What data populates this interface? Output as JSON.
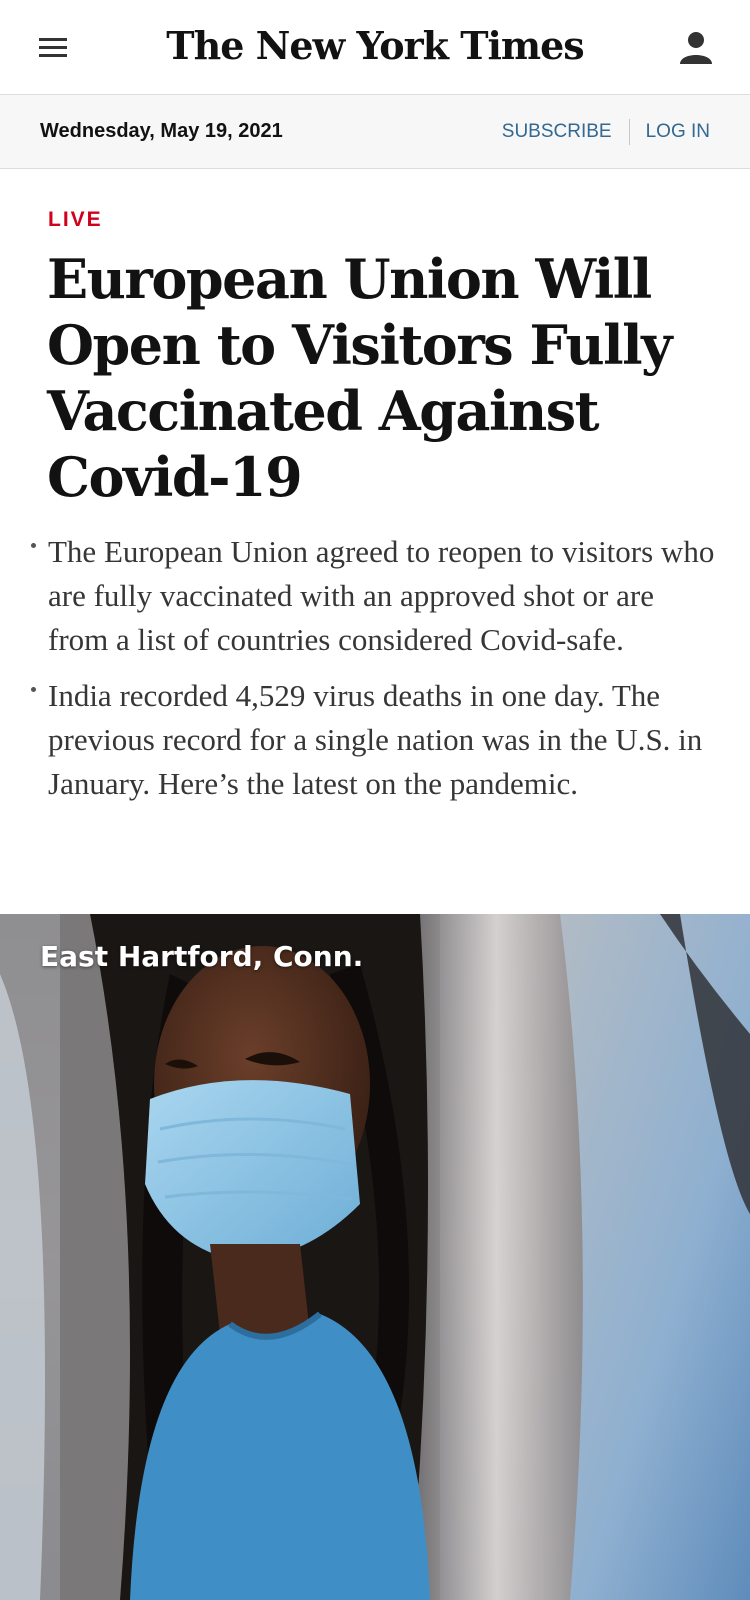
{
  "masthead": {
    "logo_text": "The New York Times",
    "menu_icon": "hamburger-menu-icon",
    "account_icon": "user-account-icon"
  },
  "utility": {
    "date": "Wednesday, May 19, 2021",
    "subscribe_label": "SUBSCRIBE",
    "login_label": "LOG IN"
  },
  "story": {
    "label": "LIVE",
    "headline": "European Union Will Open to Visitors Fully Vaccinated Against Covid-19",
    "summary": [
      "The European Union agreed to reopen to visitors who are fully vaccinated with an approved shot or are from a list of countries considered Covid-safe.",
      "India recorded 4,529 virus deaths in one day. The previous record for a single nation was in the U.S. in January. Here’s the latest on the pandemic."
    ]
  },
  "photo": {
    "location_caption": "East Hartford, Conn."
  },
  "colors": {
    "live_red": "#d0021b",
    "link_blue": "#326891",
    "mask_blue": "#8ec6e6",
    "shirt_blue": "#3f8fc6"
  }
}
